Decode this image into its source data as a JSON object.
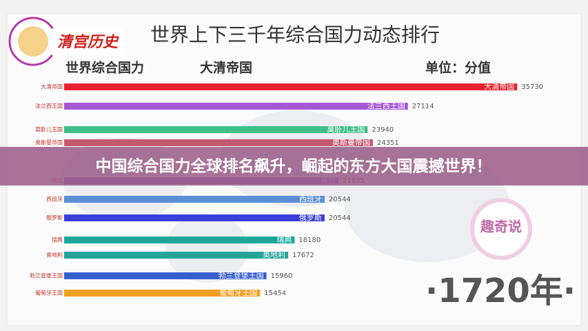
{
  "chart_data": {
    "type": "bar",
    "orientation": "horizontal",
    "title": "世界上下三千年综合国力动态排行",
    "subtitle": "世界综合国力",
    "leader": "大清帝国",
    "unit": "单位：分值",
    "period": "·1720年·",
    "categories": [
      "大清帝国",
      "法兰西王国",
      "莫卧儿王国",
      "奥斯曼帝国",
      "荷兰",
      "西班牙",
      "俄罗斯",
      "瑞典",
      "奥地利",
      "勃兰登堡王国",
      "葡萄牙王国"
    ],
    "values": [
      35730,
      27114,
      23940,
      24351,
      21635,
      20544,
      20544,
      18180,
      17672,
      15960,
      15454
    ],
    "colors": [
      "#e8232f",
      "#a557d4",
      "#3fbf8a",
      "#c45a72",
      "#9b6fd0",
      "#5b8fd6",
      "#3b3fd8",
      "#1aa79a",
      "#26a39a",
      "#3a5fd0",
      "#f0a020"
    ],
    "xlim": [
      0,
      38000
    ]
  },
  "banner": "中国综合国力全球排名飙升，崛起的东方大国震撼世界！",
  "logo": "清宫历史",
  "watermark": "趣奇说"
}
